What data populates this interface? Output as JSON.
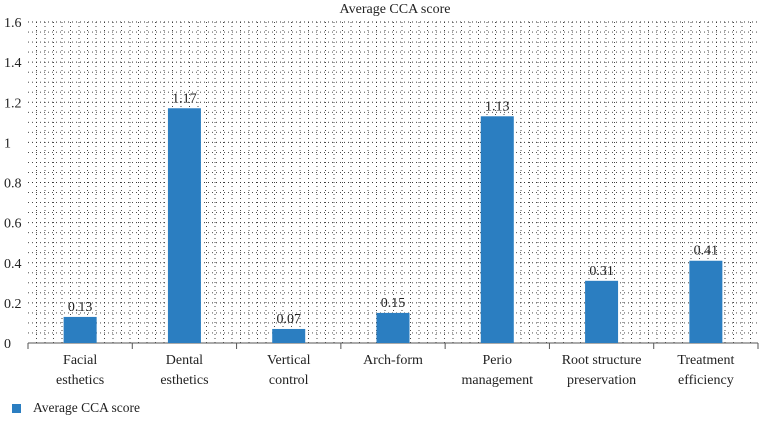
{
  "chart_data": {
    "type": "bar",
    "title": "Average CCA score",
    "categories": [
      [
        "Facial",
        "esthetics"
      ],
      [
        "Dental",
        "esthetics"
      ],
      [
        "Vertical",
        "control"
      ],
      [
        "Arch-form"
      ],
      [
        "Perio",
        "management"
      ],
      [
        "Root structure",
        "preservation"
      ],
      [
        "Treatment",
        "efficiency"
      ]
    ],
    "series": [
      {
        "name": "Average CCA score",
        "values": [
          0.13,
          1.17,
          0.07,
          0.15,
          1.13,
          0.31,
          0.41
        ],
        "labels": [
          "0.13",
          "1.17",
          "0.07",
          "0.15",
          "1.13",
          "0.31",
          "0.41"
        ],
        "color": "#2b7ec1"
      }
    ],
    "yticks": [
      "0",
      "0.2",
      "0.4",
      "0.6",
      "0.8",
      "1",
      "1.2",
      "1.4",
      "1.6"
    ],
    "ylim": [
      0,
      1.6
    ],
    "grid": "dotted",
    "legend_position": "bottom-left",
    "xlabel": "",
    "ylabel": ""
  }
}
